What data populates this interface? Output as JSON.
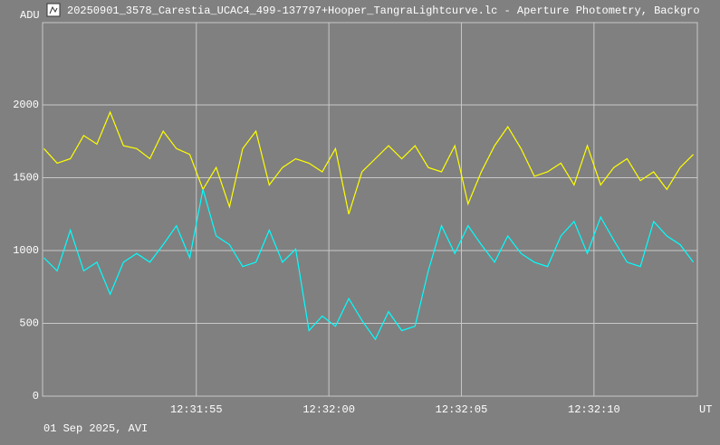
{
  "chart_data": {
    "type": "line",
    "title": "20250901_3578_Carestia_UCAC4_499-137797+Hooper_TangraLightcurve.lc - Aperture Photometry, Backgro",
    "y_label": "ADU",
    "x_label": "UT",
    "footer": "01 Sep 2025, AVI",
    "grid": true,
    "background": "#808080",
    "grid_color": "#c8c8c8",
    "x": [
      45109.25,
      45109.75,
      45110.25,
      45110.75,
      45111.25,
      45111.75,
      45112.25,
      45112.75,
      45113.25,
      45113.75,
      45114.25,
      45114.75,
      45115.25,
      45115.75,
      45116.25,
      45116.75,
      45117.25,
      45117.75,
      45118.25,
      45118.75,
      45119.25,
      45119.75,
      45120.25,
      45120.75,
      45121.25,
      45121.75,
      45122.25,
      45122.75,
      45123.25,
      45123.75,
      45124.25,
      45124.75,
      45125.25,
      45125.75,
      45126.25,
      45126.75,
      45127.25,
      45127.75,
      45128.25,
      45128.75,
      45129.25,
      45129.75,
      45130.25,
      45130.75,
      45131.25,
      45131.75,
      45132.25,
      45132.75,
      45133.25,
      45133.75
    ],
    "series": [
      {
        "color": "#ffff00",
        "values": [
          1700,
          1600,
          1630,
          1790,
          1730,
          1950,
          1720,
          1700,
          1630,
          1820,
          1700,
          1660,
          1420,
          1570,
          1300,
          1700,
          1820,
          1450,
          1570,
          1630,
          1600,
          1540,
          1700,
          1250,
          1540,
          1630,
          1720,
          1630,
          1720,
          1570,
          1540,
          1720,
          1320,
          1540,
          1720,
          1850,
          1700,
          1510,
          1540,
          1600,
          1450,
          1720,
          1450,
          1570,
          1630,
          1480,
          1540,
          1420,
          1570,
          1660
        ]
      },
      {
        "color": "#00ffff",
        "values": [
          950,
          860,
          1140,
          860,
          920,
          700,
          920,
          980,
          920,
          1040,
          1170,
          950,
          1420,
          1100,
          1040,
          890,
          920,
          1140,
          920,
          1010,
          450,
          550,
          480,
          670,
          520,
          390,
          580,
          450,
          480,
          860,
          1170,
          980,
          1170,
          1040,
          920,
          1100,
          980,
          920,
          890,
          1100,
          1200,
          980,
          1230,
          1070,
          920,
          890,
          1200,
          1100,
          1040,
          920
        ]
      }
    ],
    "xlim": [
      45109.2,
      45133.9
    ],
    "ylim": [
      0,
      2565
    ],
    "yticks": [
      0,
      500,
      1000,
      1500,
      2000
    ],
    "xticks": [
      {
        "value": 45115,
        "label": "12:31:55"
      },
      {
        "value": 45120,
        "label": "12:32:00"
      },
      {
        "value": 45125,
        "label": "12:32:05"
      },
      {
        "value": 45130,
        "label": "12:32:10"
      }
    ]
  }
}
